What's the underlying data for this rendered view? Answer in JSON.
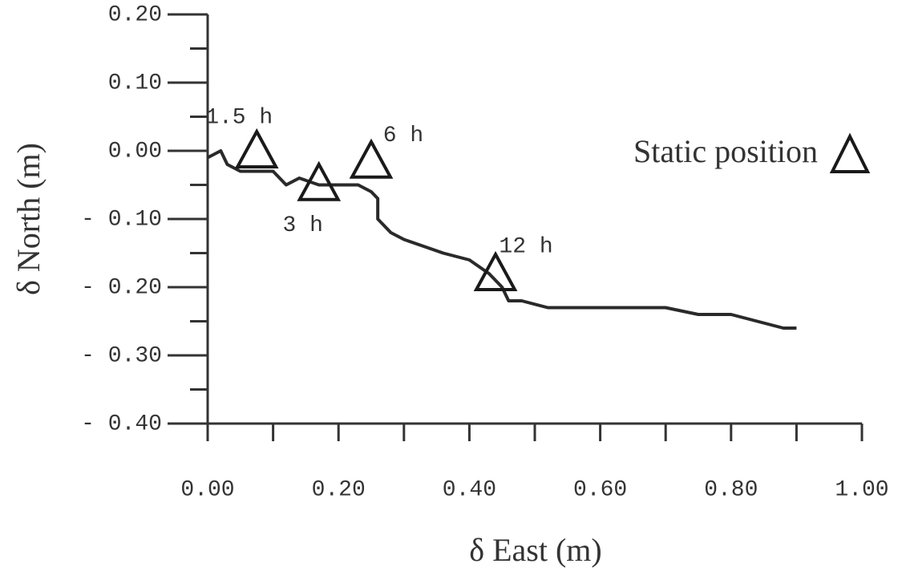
{
  "chart_data": {
    "type": "line",
    "x_label": "δ East (m)",
    "y_label": "δ North (m)",
    "xlim": [
      0,
      1
    ],
    "ylim": [
      -0.4,
      0.2
    ],
    "xticks": [
      {
        "value": 0,
        "label": "0.00"
      },
      {
        "value": 0.2,
        "label": "0.20"
      },
      {
        "value": 0.4,
        "label": "0.40"
      },
      {
        "value": 0.6,
        "label": "0.60"
      },
      {
        "value": 0.8,
        "label": "0.80"
      },
      {
        "value": 1,
        "label": "1.00"
      }
    ],
    "xminor_ticks": [
      0.1,
      0.3,
      0.5,
      0.7,
      0.9
    ],
    "yticks": [
      {
        "value": -0.4,
        "label": "- 0.40"
      },
      {
        "value": -0.3,
        "label": "- 0.30"
      },
      {
        "value": -0.2,
        "label": "- 0.20"
      },
      {
        "value": -0.1,
        "label": "- 0.10"
      },
      {
        "value": 0,
        "label": "0.00"
      },
      {
        "value": 0.1,
        "label": "0.10"
      },
      {
        "value": 0.2,
        "label": "0.20"
      }
    ],
    "yminor_ticks": [
      -0.35,
      -0.25,
      -0.15,
      -0.05,
      0.05,
      0.15
    ],
    "legend_position": "upper right",
    "series": [
      {
        "color": "#2a2a2a",
        "x": [
          0.0,
          0.02,
          0.03,
          0.05,
          0.08,
          0.1,
          0.12,
          0.14,
          0.17,
          0.2,
          0.23,
          0.25,
          0.26,
          0.26,
          0.28,
          0.3,
          0.33,
          0.36,
          0.4,
          0.43,
          0.45,
          0.46,
          0.48,
          0.52,
          0.56,
          0.6,
          0.65,
          0.7,
          0.75,
          0.8,
          0.84,
          0.88,
          0.9
        ],
        "values": [
          -0.01,
          0.0,
          -0.02,
          -0.03,
          -0.03,
          -0.03,
          -0.05,
          -0.04,
          -0.05,
          -0.05,
          -0.05,
          -0.06,
          -0.07,
          -0.1,
          -0.12,
          -0.13,
          -0.14,
          -0.15,
          -0.16,
          -0.18,
          -0.2,
          -0.22,
          -0.22,
          -0.23,
          -0.23,
          -0.23,
          -0.23,
          -0.23,
          -0.24,
          -0.24,
          -0.25,
          -0.26,
          -0.26
        ]
      },
      {
        "name": "Static position",
        "type": "scatter",
        "marker": "triangle",
        "color": "#1a1a1a",
        "x": [
          0.075,
          0.17,
          0.25,
          0.44
        ],
        "values": [
          0.0,
          -0.048,
          -0.015,
          -0.18
        ],
        "labels": [
          "1.5 h",
          "3 h",
          "6 h",
          "12 h"
        ]
      }
    ]
  }
}
